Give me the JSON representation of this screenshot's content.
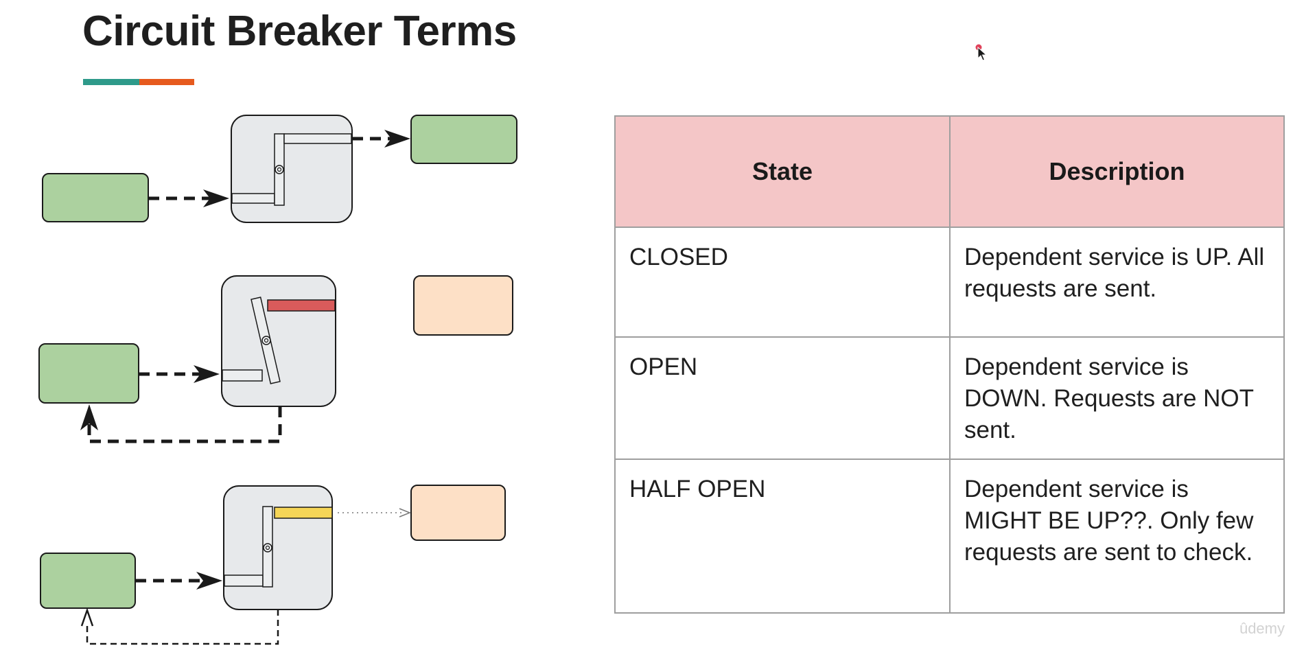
{
  "slide": {
    "title": "Circuit Breaker Terms",
    "accent_colors": {
      "teal": "#2e9a8a",
      "orange": "#e65a1e"
    }
  },
  "diagram": {
    "colors": {
      "client_box": "#acd19f",
      "service_up_box": "#acd19f",
      "service_down_box": "#fde0c6",
      "breaker_body": "#e7e9eb",
      "open_bar": "#d95b5b",
      "half_open_bar": "#f5d557",
      "stroke": "#1a1a1a"
    }
  },
  "table": {
    "headers": {
      "state": "State",
      "description": "Description"
    },
    "header_bg": "#f4c6c7",
    "rows": [
      {
        "state": "CLOSED",
        "description": "Dependent service is UP. All requests are sent."
      },
      {
        "state": "OPEN",
        "description": "Dependent service is DOWN. Requests are NOT sent."
      },
      {
        "state": "HALF OPEN",
        "description": "Dependent service is MIGHT BE UP??. Only few requests are sent to check."
      }
    ]
  },
  "watermark": "ûdemy",
  "cursor": {
    "icon": "mouse-pointer-icon"
  }
}
